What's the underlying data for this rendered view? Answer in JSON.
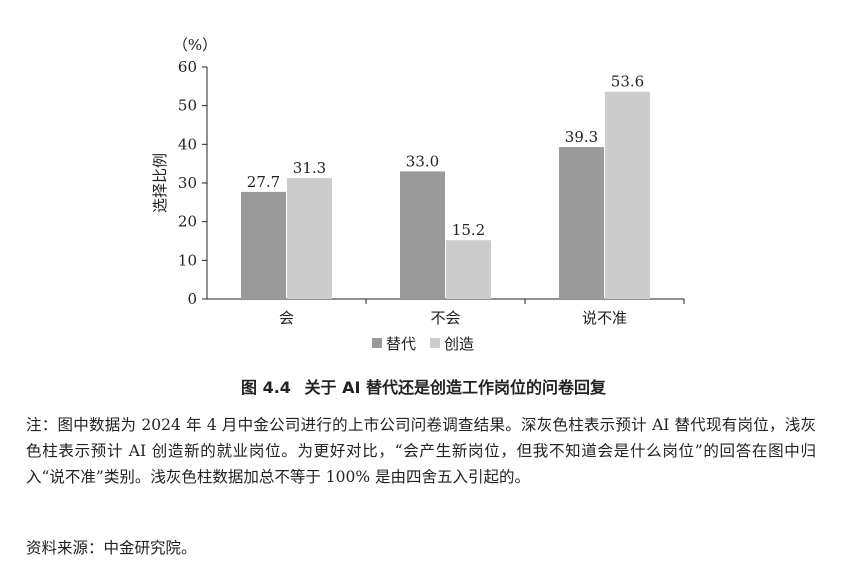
{
  "chart_data": {
    "type": "bar",
    "unit_label": "（%）",
    "ylabel": "选择比例",
    "ylim": [
      0,
      60
    ],
    "yticks": [
      0,
      10,
      20,
      30,
      40,
      50,
      60
    ],
    "categories": [
      "会",
      "不会",
      "说不准"
    ],
    "series": [
      {
        "name": "替代",
        "color": "#9a9a9a",
        "values": [
          27.7,
          33.0,
          39.3
        ]
      },
      {
        "name": "创造",
        "color": "#cccccc",
        "values": [
          31.3,
          15.2,
          53.6
        ]
      }
    ],
    "data_labels": [
      [
        "27.7",
        "33.0",
        "39.3"
      ],
      [
        "31.3",
        "15.2",
        "53.6"
      ]
    ],
    "legend_position": "bottom-center",
    "grid": false
  },
  "caption": {
    "figure_number": "图 4.4",
    "title": "关于 AI 替代还是创造工作岗位的问卷回复"
  },
  "note": "注：图中数据为 2024 年 4 月中金公司进行的上市公司问卷调查结果。深灰色柱表示预计 AI 替代现有岗位，浅灰色柱表示预计 AI 创造新的就业岗位。为更好对比，“会产生新岗位，但我不知道会是什么岗位”的回答在图中归入“说不准”类别。浅灰色柱数据加总不等于 100% 是由四舍五入引起的。",
  "source": "资料来源：中金研究院。"
}
